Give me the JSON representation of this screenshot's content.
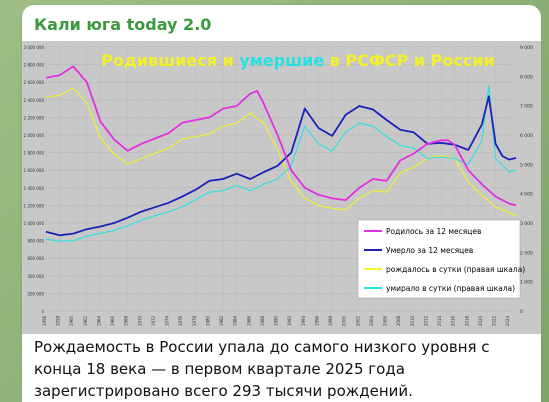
{
  "post": {
    "channel_name": "Кали юга today 2.0",
    "caption": "Рождаемость в России упала до самого низкого уровня с конца 18 века — в первом квартале 2025 года зарегистрировано всего 293 тысячи рождений."
  },
  "colors": {
    "births": "#e030e0",
    "deaths": "#1a22b8",
    "births_daily": "#f2f22a",
    "deaths_daily": "#29dfe0",
    "title_main": "#f2f22a",
    "title_accent": "#29dfe0",
    "plot_bg": "#c8c8c8",
    "channel": "#3a9a3c"
  },
  "chart_data": {
    "type": "line",
    "title": "Родившиеся и умершие в РСФСР и России",
    "title_parts": [
      "Родившиеся и ",
      "умершие",
      " в РСФСР и России"
    ],
    "ylim_left": [
      0,
      3000000
    ],
    "ylim_right": [
      0,
      9000
    ],
    "left_ticks": [
      "0",
      "200 000",
      "400 000",
      "600 000",
      "800 000",
      "1 000 000",
      "1 200 000",
      "1 400 000",
      "1 600 000",
      "1 800 000",
      "2 000 000",
      "2 200 000",
      "2 400 000",
      "2 600 000",
      "2 800 000",
      "3 000 000"
    ],
    "right_ticks": [
      "0",
      "1 000",
      "2 000",
      "3 000",
      "4 000",
      "5 000",
      "6 000",
      "7 000",
      "8 000",
      "9 000"
    ],
    "x_ticks": [
      "1956",
      "1958",
      "1960",
      "1962",
      "1964",
      "1966",
      "1968",
      "1970",
      "1972",
      "1974",
      "1976",
      "1978",
      "1980",
      "1982",
      "1984",
      "1986",
      "1988",
      "1990",
      "1992",
      "1994",
      "1996",
      "1998",
      "2000",
      "2002",
      "2004",
      "2006",
      "2008",
      "2010",
      "2012",
      "2014",
      "2016",
      "2018",
      "2020",
      "2022",
      "2024"
    ],
    "legend": [
      "Родилось за 12 месяцев",
      "Умерло за 12 месяцев",
      "рождалось в сутки (правая шкала)",
      "умирало в сутки (правая шкала)"
    ],
    "series": [
      {
        "name": "Родилось за 12 месяцев",
        "axis": "left",
        "x": [
          1956,
          1958,
          1960,
          1962,
          1964,
          1966,
          1968,
          1970,
          1972,
          1974,
          1976,
          1978,
          1980,
          1982,
          1984,
          1986,
          1987,
          1988,
          1990,
          1992,
          1994,
          1996,
          1998,
          2000,
          2002,
          2004,
          2006,
          2008,
          2010,
          2012,
          2014,
          2015,
          2016,
          2018,
          2020,
          2022,
          2024,
          2025
        ],
        "y": [
          2650000,
          2680000,
          2780000,
          2600000,
          2150000,
          1950000,
          1820000,
          1900000,
          1960000,
          2020000,
          2140000,
          2170000,
          2200000,
          2300000,
          2330000,
          2470000,
          2500000,
          2350000,
          2000000,
          1600000,
          1400000,
          1320000,
          1280000,
          1260000,
          1400000,
          1500000,
          1480000,
          1710000,
          1790000,
          1900000,
          1940000,
          1940000,
          1890000,
          1600000,
          1440000,
          1300000,
          1220000,
          1200000
        ]
      },
      {
        "name": "Умерло за 12 месяцев",
        "axis": "left",
        "x": [
          1956,
          1958,
          1960,
          1962,
          1964,
          1966,
          1968,
          1970,
          1972,
          1974,
          1976,
          1978,
          1980,
          1982,
          1984,
          1986,
          1988,
          1990,
          1992,
          1994,
          1996,
          1998,
          2000,
          2002,
          2004,
          2006,
          2008,
          2010,
          2012,
          2014,
          2016,
          2018,
          2020,
          2021,
          2022,
          2023,
          2024,
          2025
        ],
        "y": [
          900000,
          860000,
          880000,
          930000,
          960000,
          1000000,
          1060000,
          1130000,
          1180000,
          1230000,
          1300000,
          1380000,
          1480000,
          1500000,
          1560000,
          1500000,
          1580000,
          1650000,
          1800000,
          2300000,
          2080000,
          1990000,
          2230000,
          2330000,
          2290000,
          2170000,
          2060000,
          2030000,
          1900000,
          1910000,
          1890000,
          1830000,
          2120000,
          2440000,
          1900000,
          1760000,
          1720000,
          1740000
        ]
      },
      {
        "name": "рождалось в сутки (правая шкала)",
        "axis": "right",
        "x": [
          1956,
          1958,
          1960,
          1962,
          1964,
          1966,
          1968,
          1970,
          1972,
          1974,
          1976,
          1978,
          1980,
          1982,
          1984,
          1986,
          1988,
          1990,
          1992,
          1994,
          1996,
          1998,
          2000,
          2002,
          2004,
          2006,
          2008,
          2010,
          2012,
          2014,
          2016,
          2018,
          2020,
          2022,
          2024,
          2025
        ],
        "y": [
          7300,
          7350,
          7600,
          7100,
          5900,
          5350,
          5000,
          5200,
          5380,
          5550,
          5860,
          5950,
          6030,
          6300,
          6400,
          6750,
          6400,
          5500,
          4400,
          3850,
          3600,
          3500,
          3450,
          3850,
          4100,
          4050,
          4700,
          4900,
          5200,
          5300,
          5200,
          4400,
          3950,
          3550,
          3350,
          3250
        ]
      },
      {
        "name": "умирало в сутки (правая шкала)",
        "axis": "right",
        "x": [
          1956,
          1958,
          1960,
          1962,
          1964,
          1966,
          1968,
          1970,
          1972,
          1974,
          1976,
          1978,
          1980,
          1982,
          1984,
          1986,
          1988,
          1990,
          1992,
          1994,
          1996,
          1998,
          2000,
          2002,
          2004,
          2006,
          2008,
          2010,
          2012,
          2014,
          2016,
          2018,
          2020,
          2021,
          2022,
          2024,
          2025
        ],
        "y": [
          2450,
          2380,
          2400,
          2550,
          2650,
          2750,
          2900,
          3100,
          3250,
          3380,
          3550,
          3800,
          4050,
          4100,
          4280,
          4100,
          4330,
          4500,
          4950,
          6300,
          5700,
          5450,
          6100,
          6400,
          6300,
          5950,
          5650,
          5550,
          5200,
          5250,
          5200,
          5000,
          5800,
          7700,
          5200,
          4750,
          4800
        ]
      }
    ]
  }
}
